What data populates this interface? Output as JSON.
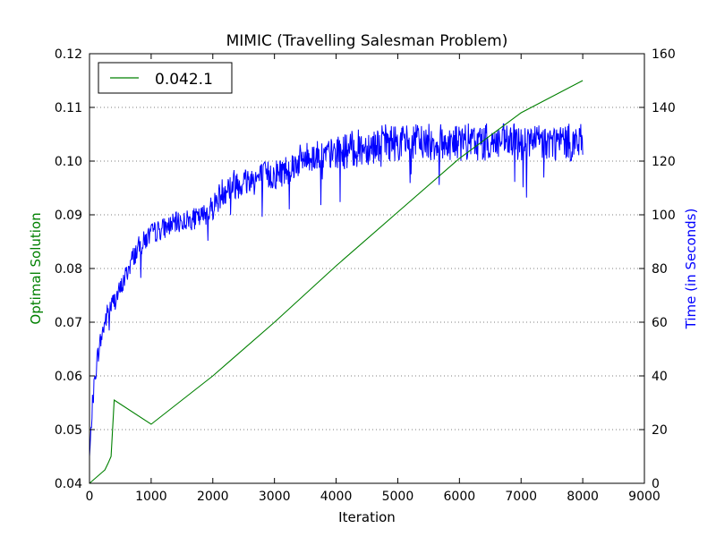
{
  "chart_data": {
    "type": "line",
    "title": "MIMIC (Travelling Salesman Problem)",
    "xlabel": "Iteration",
    "ylabel": "Optimal Solution",
    "ylabel_right": "Time (in Seconds)",
    "xlim": [
      0,
      9000
    ],
    "ylim": [
      0.04,
      0.12
    ],
    "ylim_right": [
      0,
      160
    ],
    "x_ticks": [
      "0",
      "1000",
      "2000",
      "3000",
      "4000",
      "5000",
      "6000",
      "7000",
      "8000",
      "9000"
    ],
    "y_ticks": [
      "0.04",
      "0.05",
      "0.06",
      "0.07",
      "0.08",
      "0.09",
      "0.10",
      "0.11",
      "0.12"
    ],
    "y_ticks_right": [
      "0",
      "20",
      "40",
      "60",
      "80",
      "100",
      "120",
      "140",
      "160"
    ],
    "grid": "horizontal dotted",
    "legend": {
      "placement": "top-left",
      "entries": [
        "0.042.1"
      ]
    },
    "colors": {
      "solution": "#008000",
      "time": "#0000ff",
      "left_axis_label": "#008000",
      "right_axis_label": "#0000ff"
    },
    "series": [
      {
        "name": "0.042.1",
        "axis": "left",
        "color": "#008000",
        "x": [
          0,
          100,
          200,
          250,
          300,
          350,
          400,
          1000,
          2000,
          3000,
          4000,
          5000,
          6000,
          7000,
          8000
        ],
        "values": [
          0.04,
          0.041,
          0.042,
          0.0425,
          0.0437,
          0.045,
          0.0555,
          0.051,
          0.06,
          0.07,
          0.0805,
          0.0905,
          0.1005,
          0.109,
          0.115
        ]
      },
      {
        "axis": "right",
        "color": "#0000ff",
        "x": [
          0,
          50,
          100,
          150,
          200,
          250,
          300,
          400,
          500,
          600,
          700,
          800,
          1000,
          1200,
          1400,
          1600,
          1800,
          2000,
          2200,
          2400,
          2600,
          2800,
          3000,
          3200,
          3400,
          3600,
          3800,
          4000,
          4200,
          4400,
          4600,
          4800,
          5000,
          5500,
          6000,
          6500,
          7000,
          7500,
          8000
        ],
        "values": [
          10,
          30,
          42,
          50,
          55,
          60,
          64,
          68,
          72,
          78,
          84,
          88,
          93,
          95,
          97,
          98,
          99,
          103,
          110,
          112,
          113,
          114,
          115,
          117,
          120,
          122,
          122,
          123,
          124,
          125,
          126,
          127,
          127,
          127,
          127,
          127,
          127,
          127,
          127
        ],
        "noise": [
          0,
          4,
          4,
          4,
          4,
          4,
          4,
          4,
          4,
          4,
          4,
          4,
          4,
          4,
          4,
          4,
          4,
          5,
          6,
          6,
          6,
          6,
          6,
          6,
          6,
          6,
          6,
          6,
          7,
          7,
          7,
          7,
          7,
          7,
          7,
          7,
          7,
          7,
          7
        ]
      }
    ]
  }
}
